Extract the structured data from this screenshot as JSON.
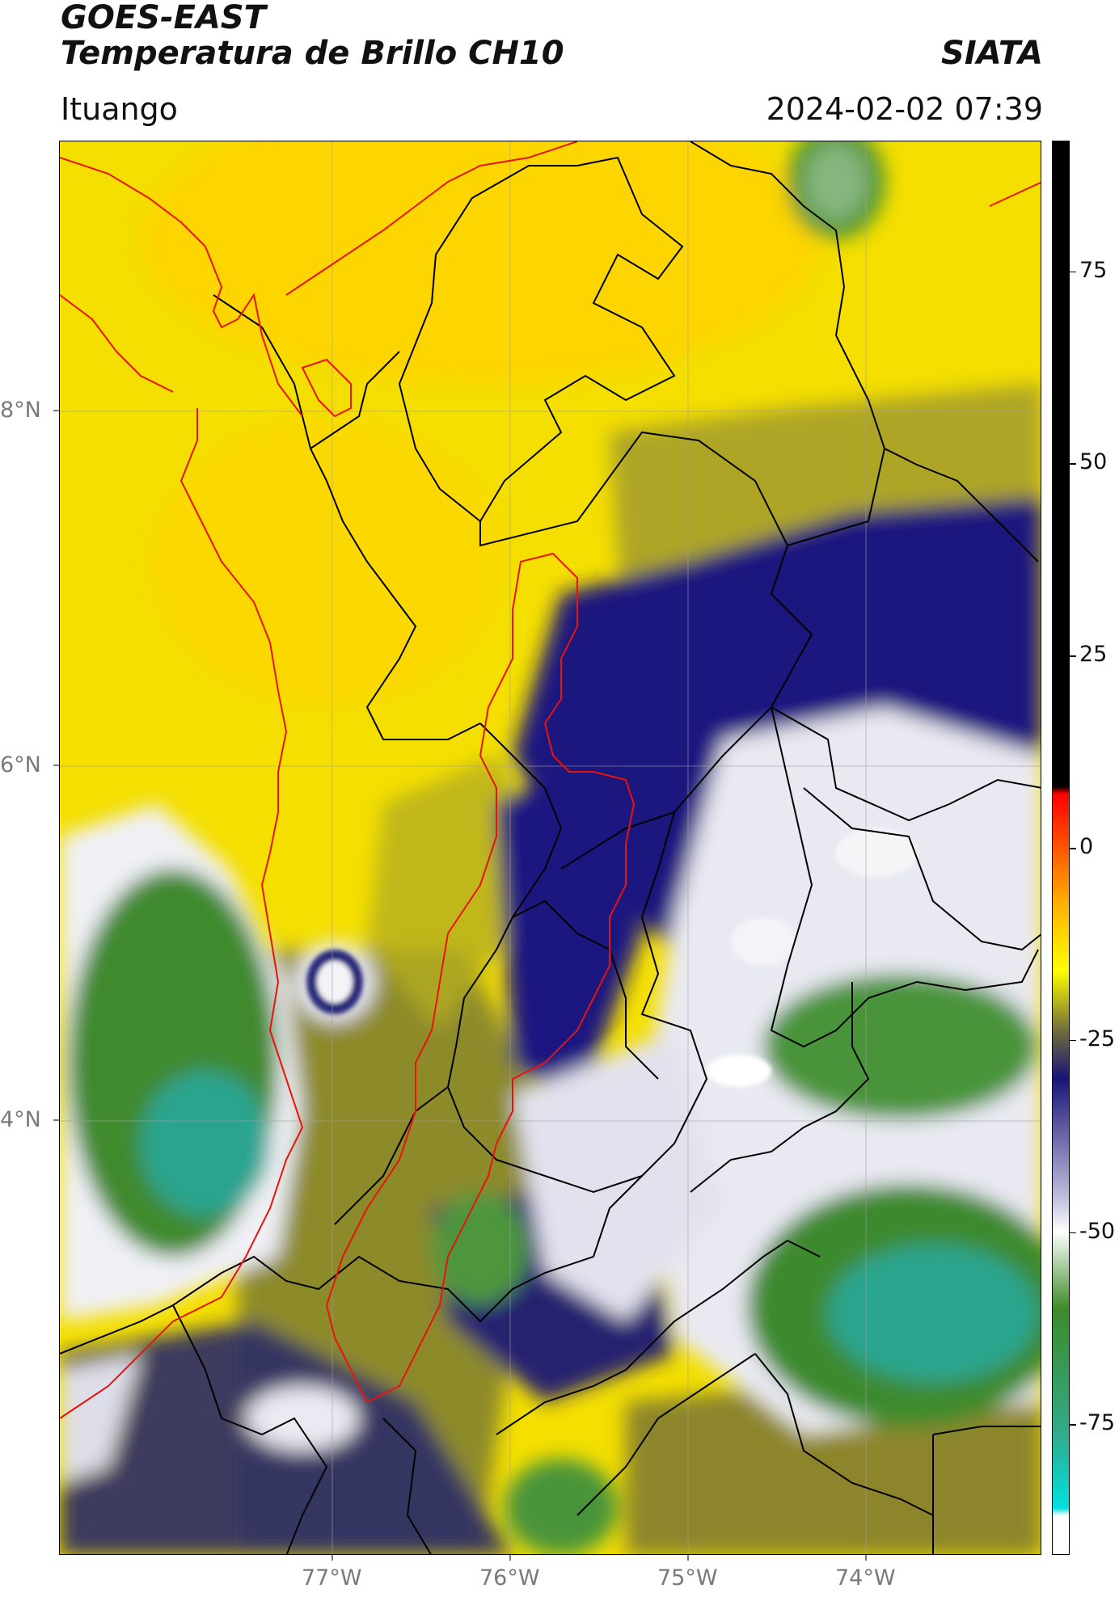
{
  "header": {
    "title": "GOES-EAST",
    "subtitle": "Temperatura de Brillo CH10",
    "brand": "SIATA",
    "location": "Ituango",
    "datetime": "2024-02-02 07:39"
  },
  "map": {
    "lat_labels": [
      "8°N",
      "6°N",
      "4°N"
    ],
    "lon_labels": [
      "77°W",
      "76°W",
      "75°W",
      "74°W"
    ],
    "grid": true,
    "colors": {
      "yellow": "#f6e200",
      "yellow_deep": "#ffd400",
      "olive": "#8f8a2a",
      "navy": "#16137a",
      "white": "#f3f3f6",
      "green": "#3e8a2e",
      "teal": "#2aa38e",
      "border_black": "#000000",
      "border_red": "#e8140c"
    }
  },
  "colorbar": {
    "ticks": [
      "75",
      "50",
      "25",
      "0",
      "-25",
      "-50",
      "-75"
    ],
    "tick_values": [
      75,
      50,
      25,
      0,
      -25,
      -50,
      -75
    ],
    "range": [
      -92,
      92
    ],
    "stops": [
      {
        "value": 92,
        "color": "#000000"
      },
      {
        "value": 8,
        "color": "#000000"
      },
      {
        "value": 7,
        "color": "#ff0000"
      },
      {
        "value": -8,
        "color": "#ffb800"
      },
      {
        "value": -16,
        "color": "#ffff00"
      },
      {
        "value": -24,
        "color": "#6e6a3c"
      },
      {
        "value": -30,
        "color": "#1a1478"
      },
      {
        "value": -45,
        "color": "#b8b8d8"
      },
      {
        "value": -50,
        "color": "#ffffff"
      },
      {
        "value": -60,
        "color": "#3c8c28"
      },
      {
        "value": -76,
        "color": "#30aa88"
      },
      {
        "value": -86,
        "color": "#00e0e0"
      },
      {
        "value": -87,
        "color": "#ffffff"
      },
      {
        "value": -92,
        "color": "#ffffff"
      }
    ]
  }
}
